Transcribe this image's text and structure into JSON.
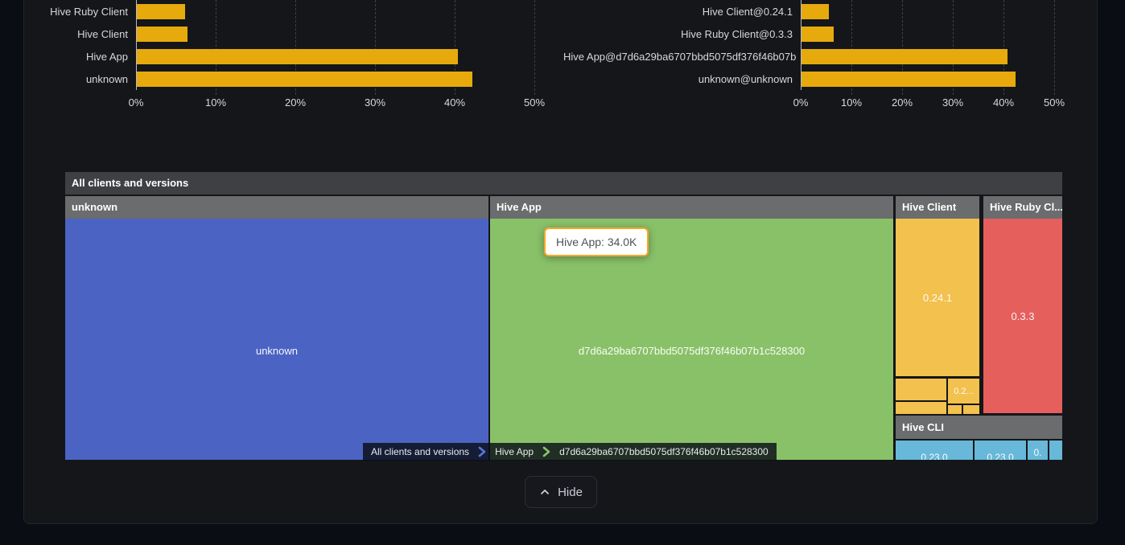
{
  "colors": {
    "page_bg": "#0a0d14",
    "card_bg": "#141619",
    "bar": "#e6aa0d",
    "treemap_title_bg": "#3e4043",
    "treemap_header_bg": "#6a6c6e",
    "unknown_blue": "#4b63c3",
    "hive_app_green": "#89c168",
    "hive_client_orange": "#f2c14e",
    "hive_ruby_red": "#e55f5d",
    "hive_cli_blue": "#67b8d9",
    "tooltip_border": "#f9a826",
    "breadcrumb_sep_blue": "#5b76d8",
    "breadcrumb_sep_green": "#8cc46a"
  },
  "chart_data": [
    {
      "type": "bar",
      "orientation": "horizontal",
      "categories": [
        "Hive Ruby Client",
        "Hive Client",
        "Hive App",
        "unknown"
      ],
      "values": [
        6.1,
        6.4,
        40.3,
        42.1
      ],
      "value_unit": "%",
      "xlim": [
        0,
        50
      ],
      "tick_labels": [
        "0%",
        "10%",
        "20%",
        "30%",
        "40%",
        "50%"
      ],
      "grid": "dashed-vertical",
      "bar_color": "#e6aa0d"
    },
    {
      "type": "bar",
      "orientation": "horizontal",
      "categories": [
        "Hive Client@0.24.1",
        "Hive Ruby Client@0.3.3",
        "Hive App@d7d6a29ba6707bbd5075df376f46b07b",
        "unknown@unknown"
      ],
      "values": [
        5.4,
        6.3,
        40.6,
        42.3
      ],
      "value_unit": "%",
      "xlim": [
        0,
        50
      ],
      "tick_labels": [
        "0%",
        "10%",
        "20%",
        "30%",
        "40%",
        "50%"
      ],
      "grid": "dashed-vertical",
      "bar_color": "#e6aa0d"
    },
    {
      "type": "treemap",
      "title": "All clients and versions",
      "groups": [
        {
          "name": "unknown",
          "color": "#4b63c3",
          "children": [
            {
              "label": "unknown"
            }
          ]
        },
        {
          "name": "Hive App",
          "color": "#89c168",
          "children": [
            {
              "label": "d7d6a29ba6707bbd5075df376f46b07b1c528300",
              "value": "34.0K"
            }
          ]
        },
        {
          "name": "Hive Client",
          "color": "#f2c14e",
          "children": [
            {
              "label": "0.24.1"
            },
            {
              "label": "0.2..."
            }
          ]
        },
        {
          "name": "Hive Ruby Cl...",
          "color": "#e55f5d",
          "children": [
            {
              "label": "0.3.3"
            }
          ]
        },
        {
          "name": "Hive CLI",
          "color": "#67b8d9",
          "children": [
            {
              "label": "0.23.0"
            },
            {
              "label": "0.23.0"
            },
            {
              "label": "0."
            }
          ]
        }
      ]
    }
  ],
  "tooltip": {
    "text": "Hive App: 34.0K"
  },
  "breadcrumb": {
    "items": [
      "All clients and versions",
      "Hive App",
      "d7d6a29ba6707bbd5075df376f46b07b1c528300"
    ]
  },
  "hide_button": {
    "label": "Hide"
  }
}
